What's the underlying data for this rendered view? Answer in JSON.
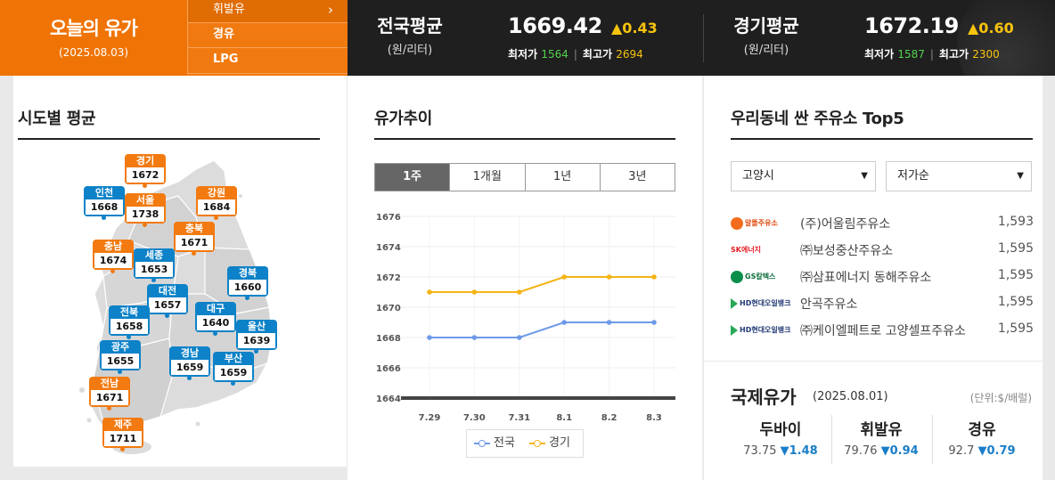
{
  "header": {
    "title": "오늘의 유가",
    "date": "(2025.08.03)",
    "fuel_menu": [
      {
        "label": "휘발유",
        "icon": "chevron-right-icon"
      },
      {
        "label": "경유"
      },
      {
        "label": "LPG"
      }
    ],
    "national": {
      "name": "전국평균",
      "unit": "(원/리터)",
      "price": "1669.42",
      "change": "▲0.43",
      "min_label": "최저가",
      "min": "1564",
      "sep": "|",
      "max_label": "최고가",
      "max": "2694"
    },
    "gyeonggi": {
      "name": "경기평균",
      "unit": "(원/리터)",
      "price": "1672.19",
      "change": "▲0.60",
      "min_label": "최저가",
      "min": "1587",
      "sep": "|",
      "max_label": "최고가",
      "max": "2300"
    }
  },
  "regional": {
    "title": "시도별 평균",
    "regions": [
      {
        "name": "경기",
        "value": "1672",
        "color": "orange"
      },
      {
        "name": "인천",
        "value": "1668",
        "color": "blue"
      },
      {
        "name": "서울",
        "value": "1738",
        "color": "orange"
      },
      {
        "name": "강원",
        "value": "1684",
        "color": "orange"
      },
      {
        "name": "충북",
        "value": "1671",
        "color": "orange"
      },
      {
        "name": "충남",
        "value": "1674",
        "color": "orange"
      },
      {
        "name": "세종",
        "value": "1653",
        "color": "blue"
      },
      {
        "name": "경북",
        "value": "1660",
        "color": "blue"
      },
      {
        "name": "대전",
        "value": "1657",
        "color": "blue"
      },
      {
        "name": "전북",
        "value": "1658",
        "color": "blue"
      },
      {
        "name": "대구",
        "value": "1640",
        "color": "blue"
      },
      {
        "name": "울산",
        "value": "1639",
        "color": "blue"
      },
      {
        "name": "광주",
        "value": "1655",
        "color": "blue"
      },
      {
        "name": "경남",
        "value": "1659",
        "color": "blue"
      },
      {
        "name": "부산",
        "value": "1659",
        "color": "blue"
      },
      {
        "name": "전남",
        "value": "1671",
        "color": "orange"
      },
      {
        "name": "제주",
        "value": "1711",
        "color": "orange"
      }
    ]
  },
  "trend": {
    "title": "유가추이",
    "tabs": [
      "1주",
      "1개월",
      "1년",
      "3년"
    ],
    "active_tab": "1주",
    "colors": {
      "national": "#6f9ae8",
      "gyeonggi": "#f5b416"
    }
  },
  "chart_data": {
    "type": "line",
    "categories": [
      "7.29",
      "7.30",
      "7.31",
      "8.1",
      "8.2",
      "8.3"
    ],
    "series": [
      {
        "name": "전국",
        "values": [
          1668,
          1668,
          1668,
          1669,
          1669,
          1669
        ]
      },
      {
        "name": "경기",
        "values": [
          1671,
          1671,
          1671,
          1672,
          1672,
          1672
        ]
      }
    ],
    "yticks": [
      "1676",
      "1674",
      "1672",
      "1670",
      "1668",
      "1666",
      "1664"
    ],
    "ylim": [
      1664,
      1676
    ],
    "legend": "bottom",
    "grid": true
  },
  "top5": {
    "title": "우리동네 싼 주유소 Top5",
    "region_select": "고양시",
    "sort_select": "저가순",
    "stations": [
      {
        "brand": "알뜰주유소",
        "logo": "al",
        "name": "(주)어울림주유소",
        "price": "1,593"
      },
      {
        "brand": "SK에너지",
        "logo": "sk",
        "name": "㈜보성중산주유소",
        "price": "1,595"
      },
      {
        "brand": "GS칼텍스",
        "logo": "gs",
        "name": "㈜삼표에너지 동해주유소",
        "price": "1,595"
      },
      {
        "brand": "HD현대오일뱅크",
        "logo": "hd",
        "name": "안곡주유소",
        "price": "1,595"
      },
      {
        "brand": "HD현대오일뱅크",
        "logo": "hd",
        "name": "㈜케이엘페트로 고양셀프주유소",
        "price": "1,595"
      }
    ]
  },
  "international": {
    "title": "국제유가",
    "date": "(2025.08.01)",
    "unit": "(단위:$/배럴)",
    "oils": [
      {
        "name": "두바이",
        "price": "73.75",
        "change": "▼1.48"
      },
      {
        "name": "휘발유",
        "price": "79.76",
        "change": "▼0.94"
      },
      {
        "name": "경유",
        "price": "92.7",
        "change": "▼0.79"
      }
    ]
  }
}
